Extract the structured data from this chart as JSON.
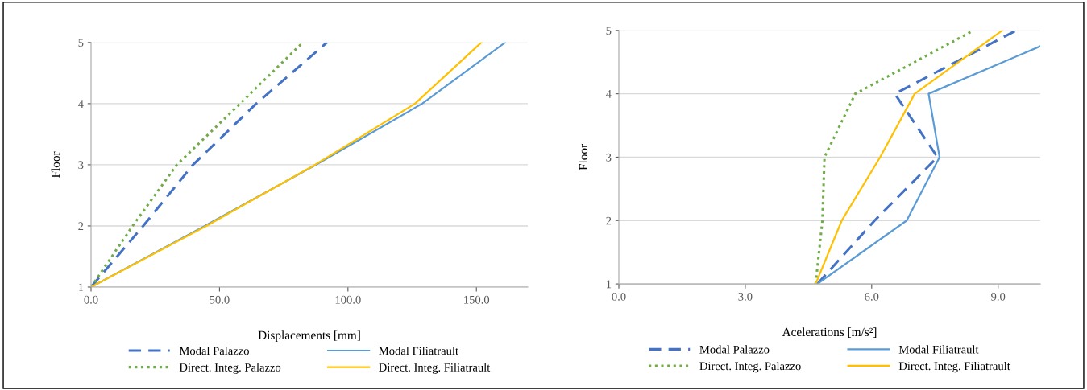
{
  "chart_data": [
    {
      "type": "line",
      "xlabel": "Displacements [mm]",
      "ylabel": "Floor",
      "xlim": [
        0,
        170
      ],
      "xticks": [
        {
          "value": 0,
          "label": "0.0"
        },
        {
          "value": 50,
          "label": "50.0"
        },
        {
          "value": 100,
          "label": "100.0"
        },
        {
          "value": 150,
          "label": "150.0"
        }
      ],
      "ylim": [
        1,
        5
      ],
      "yticks": [
        1,
        2,
        3,
        4,
        5
      ],
      "grid": "y",
      "legend": "bottom",
      "series": [
        {
          "name": "Modal Palazzo",
          "color": "#4472c4",
          "line_style": "dashed",
          "x": [
            0,
            20.3,
            39.7,
            64.3,
            91.8
          ],
          "values": [
            1,
            2,
            3,
            4,
            5
          ]
        },
        {
          "name": "Direct. Integ. Palazzo",
          "color": "#70ad47",
          "line_style": "dotted",
          "x": [
            0,
            16.2,
            33.4,
            58.0,
            82.4
          ],
          "values": [
            1,
            2,
            3,
            4,
            5
          ]
        },
        {
          "name": "Modal Filiatrault",
          "color": "#5b9bd5",
          "line_style": "solid",
          "x": [
            0,
            44.3,
            87.5,
            128.9,
            161.2
          ],
          "values": [
            1,
            2,
            3,
            4,
            5
          ]
        },
        {
          "name": "Direct. Integ. Filiatrault",
          "color": "#ffc000",
          "line_style": "solid",
          "x": [
            0,
            44.9,
            87.2,
            126.1,
            151.9
          ],
          "values": [
            1,
            2,
            3,
            4,
            5
          ]
        }
      ]
    },
    {
      "type": "line",
      "xlabel": "Acelerations [m/s²]",
      "ylabel": "Floor",
      "xlim": [
        0,
        10
      ],
      "xticks": [
        {
          "value": 0,
          "label": "0.0"
        },
        {
          "value": 3,
          "label": "3.0"
        },
        {
          "value": 6,
          "label": "6.0"
        },
        {
          "value": 9,
          "label": "9.0"
        }
      ],
      "ylim": [
        1,
        5
      ],
      "yticks": [
        1,
        2,
        3,
        4,
        5
      ],
      "grid": "y",
      "legend": "bottom",
      "series": [
        {
          "name": "Modal Palazzo",
          "color": "#4472c4",
          "line_style": "dashed",
          "x": [
            4.71,
            6.07,
            7.56,
            6.55,
            9.43
          ],
          "values": [
            1,
            2,
            3,
            4,
            5
          ]
        },
        {
          "name": "Direct. Integ. Palazzo",
          "color": "#70ad47",
          "line_style": "dotted",
          "x": [
            4.67,
            4.83,
            4.88,
            5.61,
            8.42
          ],
          "values": [
            1,
            2,
            3,
            4,
            5
          ]
        },
        {
          "name": "Modal Filiatrault",
          "color": "#5b9bd5",
          "line_style": "solid",
          "x": [
            4.71,
            6.83,
            7.61,
            7.35,
            10.0
          ],
          "values": [
            1,
            2,
            3,
            4,
            4.75
          ]
        },
        {
          "name": "Direct. Integ. Filiatrault",
          "color": "#ffc000",
          "line_style": "solid",
          "x": [
            4.67,
            5.29,
            6.2,
            7.02,
            9.1
          ],
          "values": [
            1,
            2,
            3,
            4,
            5
          ]
        }
      ]
    }
  ]
}
